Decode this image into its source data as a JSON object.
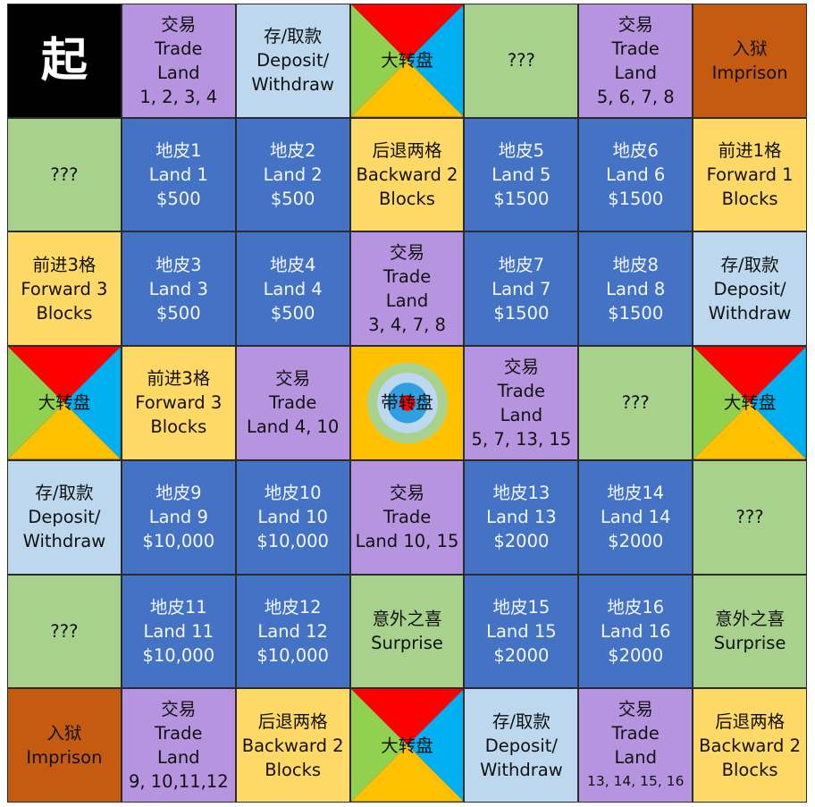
{
  "board": {
    "colors": {
      "land": "#4472c4",
      "trade": "#b794e0",
      "bank": "#bdd7ee",
      "mystery": "#a9d18e",
      "move": "#ffd966",
      "jail": "#c55a11",
      "start": "#000000",
      "wheel_top": "#ff0000",
      "wheel_right": "#00b0f0",
      "wheel_bottom": "#ffc000",
      "wheel_left": "#92d050"
    },
    "cells": [
      {
        "type": "start",
        "name": "cell-start",
        "lines": [
          "起"
        ]
      },
      {
        "type": "trade",
        "name": "cell-trade-1-2-3-4",
        "lines": [
          "交易",
          "Trade",
          "Land",
          "1, 2, 3, 4"
        ]
      },
      {
        "type": "bank",
        "name": "cell-deposit-withdraw",
        "lines": [
          "存/取款",
          "Deposit/",
          "Withdraw"
        ]
      },
      {
        "type": "wheel",
        "name": "cell-big-wheel",
        "lines": [
          "大转盘"
        ]
      },
      {
        "type": "mystery",
        "name": "cell-mystery",
        "lines": [
          "???"
        ]
      },
      {
        "type": "trade",
        "name": "cell-trade-5-6-7-8",
        "lines": [
          "交易",
          "Trade",
          "Land",
          "5, 6, 7, 8"
        ]
      },
      {
        "type": "jail",
        "name": "cell-imprison",
        "lines": [
          "入狱",
          "Imprison"
        ]
      },
      {
        "type": "mystery",
        "name": "cell-mystery",
        "lines": [
          "???"
        ]
      },
      {
        "type": "land",
        "name": "cell-land-1",
        "lines": [
          "地皮1",
          "Land 1",
          "$500"
        ]
      },
      {
        "type": "land",
        "name": "cell-land-2",
        "lines": [
          "地皮2",
          "Land 2",
          "$500"
        ]
      },
      {
        "type": "move",
        "name": "cell-backward-2",
        "lines": [
          "后退两格",
          "Backward 2",
          "Blocks"
        ]
      },
      {
        "type": "land",
        "name": "cell-land-5",
        "lines": [
          "地皮5",
          "Land 5",
          "$1500"
        ]
      },
      {
        "type": "land",
        "name": "cell-land-6",
        "lines": [
          "地皮6",
          "Land 6",
          "$1500"
        ]
      },
      {
        "type": "move",
        "name": "cell-forward-1",
        "lines": [
          "前进1格",
          "Forward 1",
          "Blocks"
        ]
      },
      {
        "type": "move",
        "name": "cell-forward-3",
        "lines": [
          "前进3格",
          "Forward 3",
          "Blocks"
        ]
      },
      {
        "type": "land",
        "name": "cell-land-3",
        "lines": [
          "地皮3",
          "Land 3",
          "$500"
        ]
      },
      {
        "type": "land",
        "name": "cell-land-4",
        "lines": [
          "地皮4",
          "Land 4",
          "$500"
        ]
      },
      {
        "type": "trade",
        "name": "cell-trade-3-4-7-8",
        "lines": [
          "交易",
          "Trade",
          "Land",
          "3, 4, 7, 8"
        ]
      },
      {
        "type": "land",
        "name": "cell-land-7",
        "lines": [
          "地皮7",
          "Land 7",
          "$1500"
        ]
      },
      {
        "type": "land",
        "name": "cell-land-8",
        "lines": [
          "地皮8",
          "Land 8",
          "$1500"
        ]
      },
      {
        "type": "bank",
        "name": "cell-deposit-withdraw",
        "lines": [
          "存/取款",
          "Deposit/",
          "Withdraw"
        ]
      },
      {
        "type": "wheel",
        "name": "cell-big-wheel",
        "lines": [
          "大转盘"
        ]
      },
      {
        "type": "move",
        "name": "cell-forward-3",
        "lines": [
          "前进3格",
          "Forward 3",
          "Blocks"
        ]
      },
      {
        "type": "trade",
        "name": "cell-trade-4-10",
        "lines": [
          "交易",
          "Trade",
          "Land 4, 10"
        ]
      },
      {
        "type": "target",
        "name": "cell-center-wheel",
        "lines": [
          "带转盘"
        ]
      },
      {
        "type": "trade",
        "name": "cell-trade-5-7-13-15",
        "lines": [
          "交易",
          "Trade",
          "Land",
          "5, 7, 13, 15"
        ]
      },
      {
        "type": "mystery",
        "name": "cell-mystery",
        "lines": [
          "???"
        ]
      },
      {
        "type": "wheel",
        "name": "cell-big-wheel",
        "lines": [
          "大转盘"
        ]
      },
      {
        "type": "bank",
        "name": "cell-deposit-withdraw",
        "lines": [
          "存/取款",
          "Deposit/",
          "Withdraw"
        ]
      },
      {
        "type": "land",
        "name": "cell-land-9",
        "lines": [
          "地皮9",
          "Land 9",
          "$10,000"
        ]
      },
      {
        "type": "land",
        "name": "cell-land-10",
        "lines": [
          "地皮10",
          "Land 10",
          "$10,000"
        ]
      },
      {
        "type": "trade",
        "name": "cell-trade-10-15",
        "lines": [
          "交易",
          "Trade",
          "Land 10, 15"
        ]
      },
      {
        "type": "land",
        "name": "cell-land-13",
        "lines": [
          "地皮13",
          "Land 13",
          "$2000"
        ]
      },
      {
        "type": "land",
        "name": "cell-land-14",
        "lines": [
          "地皮14",
          "Land 14",
          "$2000"
        ]
      },
      {
        "type": "mystery",
        "name": "cell-mystery",
        "lines": [
          "???"
        ]
      },
      {
        "type": "mystery",
        "name": "cell-mystery",
        "lines": [
          "???"
        ]
      },
      {
        "type": "land",
        "name": "cell-land-11",
        "lines": [
          "地皮11",
          "Land 11",
          "$10,000"
        ]
      },
      {
        "type": "land",
        "name": "cell-land-12",
        "lines": [
          "地皮12",
          "Land 12",
          "$10,000"
        ]
      },
      {
        "type": "surprise",
        "name": "cell-surprise",
        "lines": [
          "意外之喜",
          "Surprise"
        ]
      },
      {
        "type": "land",
        "name": "cell-land-15",
        "lines": [
          "地皮15",
          "Land 15",
          "$2000"
        ]
      },
      {
        "type": "land",
        "name": "cell-land-16",
        "lines": [
          "地皮16",
          "Land 16",
          "$2000"
        ]
      },
      {
        "type": "surprise",
        "name": "cell-surprise",
        "lines": [
          "意外之喜",
          "Surprise"
        ]
      },
      {
        "type": "jail",
        "name": "cell-imprison",
        "lines": [
          "入狱",
          "Imprison"
        ]
      },
      {
        "type": "trade",
        "name": "cell-trade-9-10-11-12",
        "lines": [
          "交易",
          "Trade",
          "Land",
          "9, 10,11,12"
        ]
      },
      {
        "type": "move",
        "name": "cell-backward-2",
        "lines": [
          "后退两格",
          "Backward 2",
          "Blocks"
        ]
      },
      {
        "type": "wheel",
        "name": "cell-big-wheel",
        "lines": [
          "大转盘"
        ]
      },
      {
        "type": "bank",
        "name": "cell-deposit-withdraw",
        "lines": [
          "存/取款",
          "Deposit/",
          "Withdraw"
        ]
      },
      {
        "type": "trade",
        "name": "cell-trade-13-14-15-16",
        "lines": [
          "交易",
          "Trade",
          "Land",
          "13, 14, 15, 16"
        ],
        "small_last": true
      },
      {
        "type": "move",
        "name": "cell-backward-2",
        "lines": [
          "后退两格",
          "Backward 2",
          "Blocks"
        ]
      }
    ]
  }
}
